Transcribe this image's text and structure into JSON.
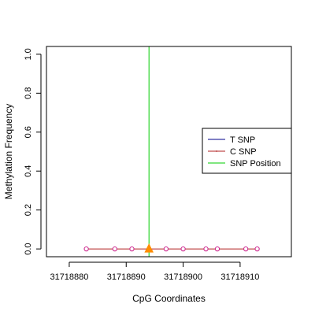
{
  "chart_data": {
    "type": "scatter",
    "title": "",
    "xlabel": "CpG Coordinates",
    "ylabel": "Methylation Frequency",
    "xlim": [
      31718876,
      31718919
    ],
    "ylim": [
      -0.04,
      1.04
    ],
    "x_ticks": [
      31718880,
      31718890,
      31718900,
      31718910
    ],
    "x_tick_labels": [
      "31718880",
      "31718890",
      "31718900",
      "31718910"
    ],
    "y_ticks": [
      0.0,
      0.2,
      0.4,
      0.6,
      0.8,
      1.0
    ],
    "y_tick_labels": [
      "0.0",
      "0.2",
      "0.4",
      "0.6",
      "0.8",
      "1.0"
    ],
    "grid": false,
    "legend_position": "right",
    "series": [
      {
        "name": "T SNP",
        "color": "#00008b",
        "x": [],
        "y": []
      },
      {
        "name": "C SNP",
        "color": "#b22222",
        "x": [
          31718883,
          31718888,
          31718891,
          31718897,
          31718900,
          31718904,
          31718906,
          31718911,
          31718913
        ],
        "y": [
          0,
          0,
          0,
          0,
          0,
          0,
          0,
          0,
          0
        ]
      },
      {
        "name": "SNP Position",
        "color": "#00cd00",
        "x": [
          31718894
        ]
      }
    ],
    "point_color": "#cd2990",
    "snp_marker": {
      "x": 31718894,
      "y": 0,
      "color": "#ff8c00"
    }
  }
}
